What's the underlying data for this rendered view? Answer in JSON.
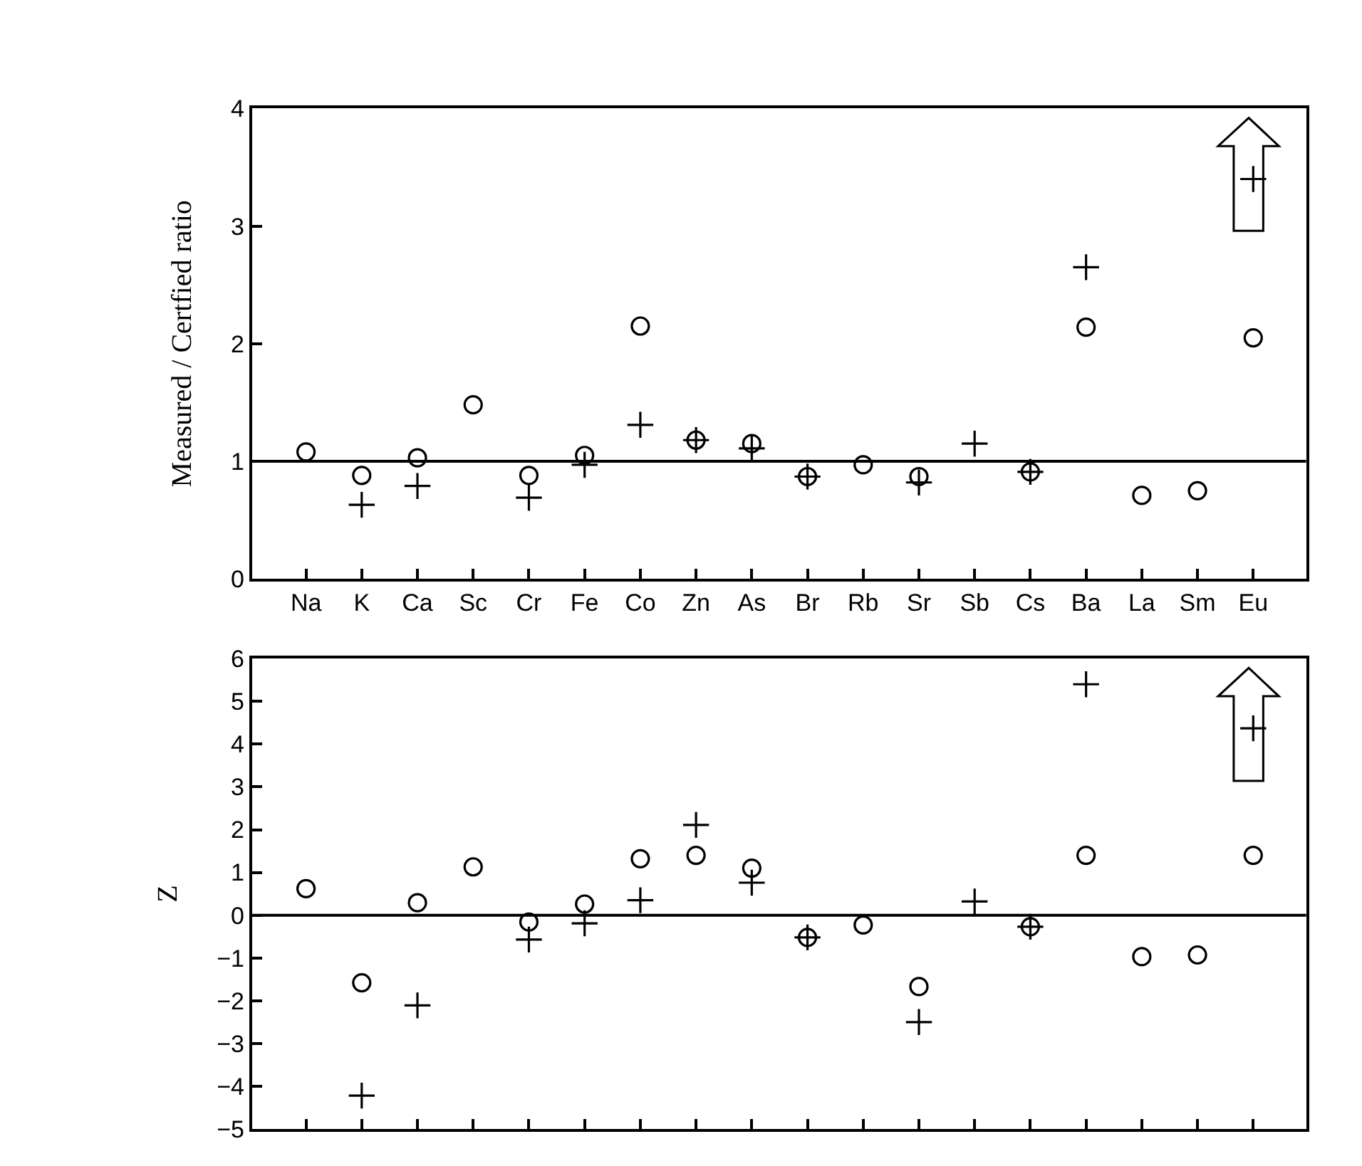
{
  "chart_data": [
    {
      "type": "scatter",
      "ylabel": "Measured / Certfied ratio",
      "categories": [
        "Na",
        "K",
        "Ca",
        "Sc",
        "Cr",
        "Fe",
        "Co",
        "Zn",
        "As",
        "Br",
        "Rb",
        "Sr",
        "Sb",
        "Cs",
        "Ba",
        "La",
        "Sm",
        "Eu"
      ],
      "ylim": [
        0,
        4
      ],
      "yticks": [
        0,
        1,
        2,
        3,
        4
      ],
      "series": [
        {
          "color": "#000000",
          "marker": "cross",
          "values": [
            null,
            0.63,
            0.79,
            null,
            0.69,
            0.97,
            1.31,
            1.18,
            1.11,
            0.87,
            null,
            0.82,
            1.15,
            0.91,
            2.65,
            null,
            null,
            3.4
          ]
        },
        {
          "color": "#000000",
          "marker": "circle",
          "values": [
            1.08,
            0.88,
            1.03,
            1.48,
            0.88,
            1.05,
            2.15,
            1.18,
            1.15,
            0.87,
            0.97,
            0.87,
            null,
            0.91,
            2.14,
            0.71,
            0.75,
            2.05
          ]
        }
      ],
      "ref_lines": [
        {
          "axis": "y",
          "value": 1,
          "color": "#000000"
        }
      ]
    },
    {
      "type": "scatter",
      "ylabel": "Z",
      "categories": [
        null,
        null,
        null,
        null,
        null,
        null,
        null,
        null,
        null,
        null,
        null,
        null,
        null,
        null,
        null,
        null,
        null,
        null
      ],
      "tick_labels": "y",
      "ylim": [
        -5,
        6
      ],
      "yticks": [
        -5,
        -4,
        -3,
        -2,
        -1,
        0,
        1,
        2,
        3,
        4,
        5,
        6
      ],
      "series": [
        {
          "color": "#000000",
          "marker": "cross",
          "values": [
            null,
            -4.22,
            -2.11,
            null,
            -0.57,
            -0.19,
            0.35,
            2.11,
            0.76,
            -0.52,
            null,
            -2.5,
            0.32,
            -0.27,
            5.4,
            null,
            null,
            4.37
          ]
        },
        {
          "color": "#000000",
          "marker": "circle",
          "values": [
            0.62,
            -1.58,
            0.29,
            1.13,
            -0.16,
            0.26,
            1.32,
            1.4,
            1.1,
            -0.52,
            -0.23,
            -1.67,
            null,
            -0.27,
            1.4,
            -0.97,
            -0.93,
            1.4
          ]
        }
      ],
      "ref_lines": [
        {
          "axis": "y",
          "value": 0,
          "color": "#000000"
        }
      ]
    }
  ]
}
